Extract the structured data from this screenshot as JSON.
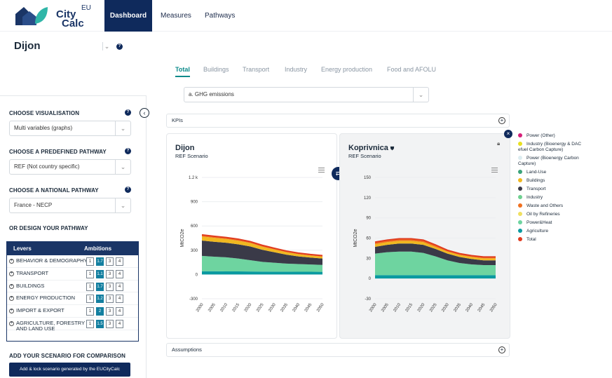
{
  "brand": {
    "eu": "EU",
    "city": "City",
    "calc": "Calc"
  },
  "nav": {
    "dashboard": "Dashboard",
    "measures": "Measures",
    "pathways": "Pathways"
  },
  "city": {
    "name": "Dijon",
    "help": "?"
  },
  "subtabs": [
    "Total",
    "Buildings",
    "Transport",
    "Industry",
    "Energy production",
    "Food and AFOLU"
  ],
  "metric_select": "a. GHG emissions",
  "sidebar": {
    "choose_vis": "CHOOSE VISUALISATION",
    "vis_value": "Multi variables (graphs)",
    "choose_pathway": "CHOOSE A PREDEFINED PATHWAY",
    "pathway_value": "REF (Not country specific)",
    "choose_national": "CHOOSE A NATIONAL PATHWAY",
    "national_value": "France - NECP",
    "design": "OR DESIGN YOUR PATHWAY",
    "levers_header": "Levers",
    "ambitions_header": "Ambitions",
    "levers": [
      {
        "name": "BEHAVIOR & DEMOGRAPHY",
        "sel": "1.7",
        "opts": [
          "1",
          "1.7",
          "3",
          "4"
        ],
        "selIdx": 1
      },
      {
        "name": "TRANSPORT",
        "sel": "1.1",
        "opts": [
          "1",
          "1.1",
          "3",
          "4"
        ],
        "selIdx": 1
      },
      {
        "name": "BUILDINGS",
        "sel": "1.7",
        "opts": [
          "1",
          "1.7",
          "3",
          "4"
        ],
        "selIdx": 1
      },
      {
        "name": "ENERGY PRODUCTION",
        "sel": "1.2",
        "opts": [
          "1",
          "1.2",
          "3",
          "4"
        ],
        "selIdx": 1
      },
      {
        "name": "IMPORT & EXPORT",
        "sel": "2",
        "opts": [
          "1",
          "2",
          "3",
          "4"
        ],
        "selIdx": 1
      },
      {
        "name": "AGRICULTURE, FORESTRY AND LAND USE",
        "sel": "1.5",
        "opts": [
          "1",
          "1.5",
          "3",
          "4"
        ],
        "selIdx": 1
      }
    ],
    "add_scenario": "ADD YOUR SCENARIO FOR COMPARISON",
    "add_button": "Add & lock scenario generated by the EUCityCalc"
  },
  "kpis_label": "KPIs",
  "assumptions_label": "Assumptions",
  "colors": {
    "navy": "#0f2a5c",
    "teal": "#0b8a8a"
  },
  "chart_data": [
    {
      "type": "area",
      "title": "Dijon",
      "subtitle": "REF Scenario",
      "ylabel": "MtCO2e",
      "yticks": [
        "1.2 k",
        "900",
        "600",
        "300",
        "0",
        "-300"
      ],
      "ylim": [
        -300,
        1200
      ],
      "x": [
        "2000",
        "2005",
        "2010",
        "2015",
        "2020",
        "2025",
        "2030",
        "2035",
        "2040",
        "2045",
        "2050"
      ],
      "series": [
        {
          "name": "Agriculture",
          "values": [
            40,
            40,
            38,
            38,
            37,
            36,
            35,
            35,
            34,
            34,
            33
          ]
        },
        {
          "name": "Power&Heat",
          "values": [
            190,
            180,
            175,
            160,
            140,
            120,
            110,
            100,
            95,
            90,
            85
          ]
        },
        {
          "name": "Transport",
          "values": [
            190,
            185,
            180,
            175,
            170,
            150,
            130,
            110,
            95,
            85,
            80
          ]
        },
        {
          "name": "Buildings",
          "values": [
            50,
            48,
            46,
            45,
            42,
            38,
            34,
            30,
            27,
            25,
            23
          ]
        },
        {
          "name": "Waste and Others",
          "values": [
            20,
            20,
            19,
            19,
            18,
            17,
            16,
            15,
            14,
            13,
            12
          ]
        }
      ]
    },
    {
      "type": "area",
      "title": "Koprivnica",
      "subtitle": "REF Scenario",
      "ylabel": "MtCO2e",
      "yticks": [
        "150",
        "120",
        "90",
        "60",
        "30",
        "0",
        "-30"
      ],
      "ylim": [
        -30,
        150
      ],
      "x": [
        "2000",
        "2005",
        "2010",
        "2015",
        "2020",
        "2025",
        "2030",
        "2035",
        "2040",
        "2045",
        "2050"
      ],
      "series": [
        {
          "name": "Agriculture",
          "values": [
            5,
            5,
            5,
            5,
            5,
            5,
            5,
            5,
            5,
            5,
            5
          ]
        },
        {
          "name": "Power&Heat",
          "values": [
            32,
            34,
            35,
            35,
            33,
            28,
            22,
            18,
            16,
            15,
            15
          ]
        },
        {
          "name": "Transport",
          "values": [
            10,
            11,
            12,
            12,
            12,
            11,
            10,
            9,
            8,
            7,
            7
          ]
        },
        {
          "name": "Buildings",
          "values": [
            4,
            4,
            4,
            4,
            4,
            3,
            3,
            3,
            3,
            3,
            3
          ]
        },
        {
          "name": "Waste and Others",
          "values": [
            3,
            3,
            3,
            3,
            3,
            3,
            2,
            2,
            2,
            2,
            2
          ]
        }
      ]
    }
  ],
  "legend": [
    {
      "label": "Power (Other)",
      "color": "#d6207a"
    },
    {
      "label": "Industry (Bioenergy & DAC efuel Carbon Capture)",
      "color": "#e8e020"
    },
    {
      "label": "Power (Bioenergy Carbon Capture)",
      "color": "#dcecf0"
    },
    {
      "label": "Land-Use",
      "color": "#3aa37a"
    },
    {
      "label": "Buildings",
      "color": "#f0b820"
    },
    {
      "label": "Transport",
      "color": "#3a3a48"
    },
    {
      "label": "Industry",
      "color": "#6fd090"
    },
    {
      "label": "Waste and Others",
      "color": "#f07020"
    },
    {
      "label": "Oil by Refineries",
      "color": "#f0e060"
    },
    {
      "label": "Power&Heat",
      "color": "#6ed4a0"
    },
    {
      "label": "Agriculture",
      "color": "#0a9aa0"
    },
    {
      "label": "Total",
      "color": "#e03c20"
    }
  ]
}
